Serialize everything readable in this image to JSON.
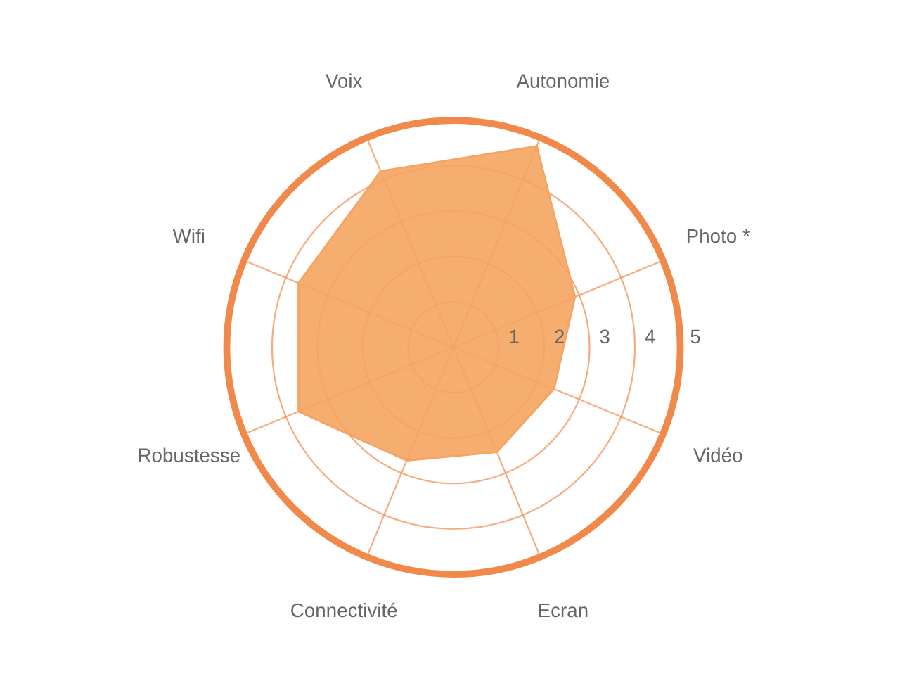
{
  "chart_data": {
    "type": "radar",
    "categories": [
      "Autonomie",
      "Photo *",
      "Vidéo",
      "Ecran",
      "Connectivité",
      "Robustesse",
      "Wifi",
      "Voix"
    ],
    "series": [
      {
        "color": "#f5a461",
        "values": [
          4.8,
          2.9,
          2.4,
          2.5,
          2.7,
          3.7,
          3.7,
          4.2
        ]
      }
    ],
    "ylim": [
      0,
      5
    ],
    "yticks": [
      1,
      2,
      3,
      4,
      5
    ],
    "grid": true
  }
}
